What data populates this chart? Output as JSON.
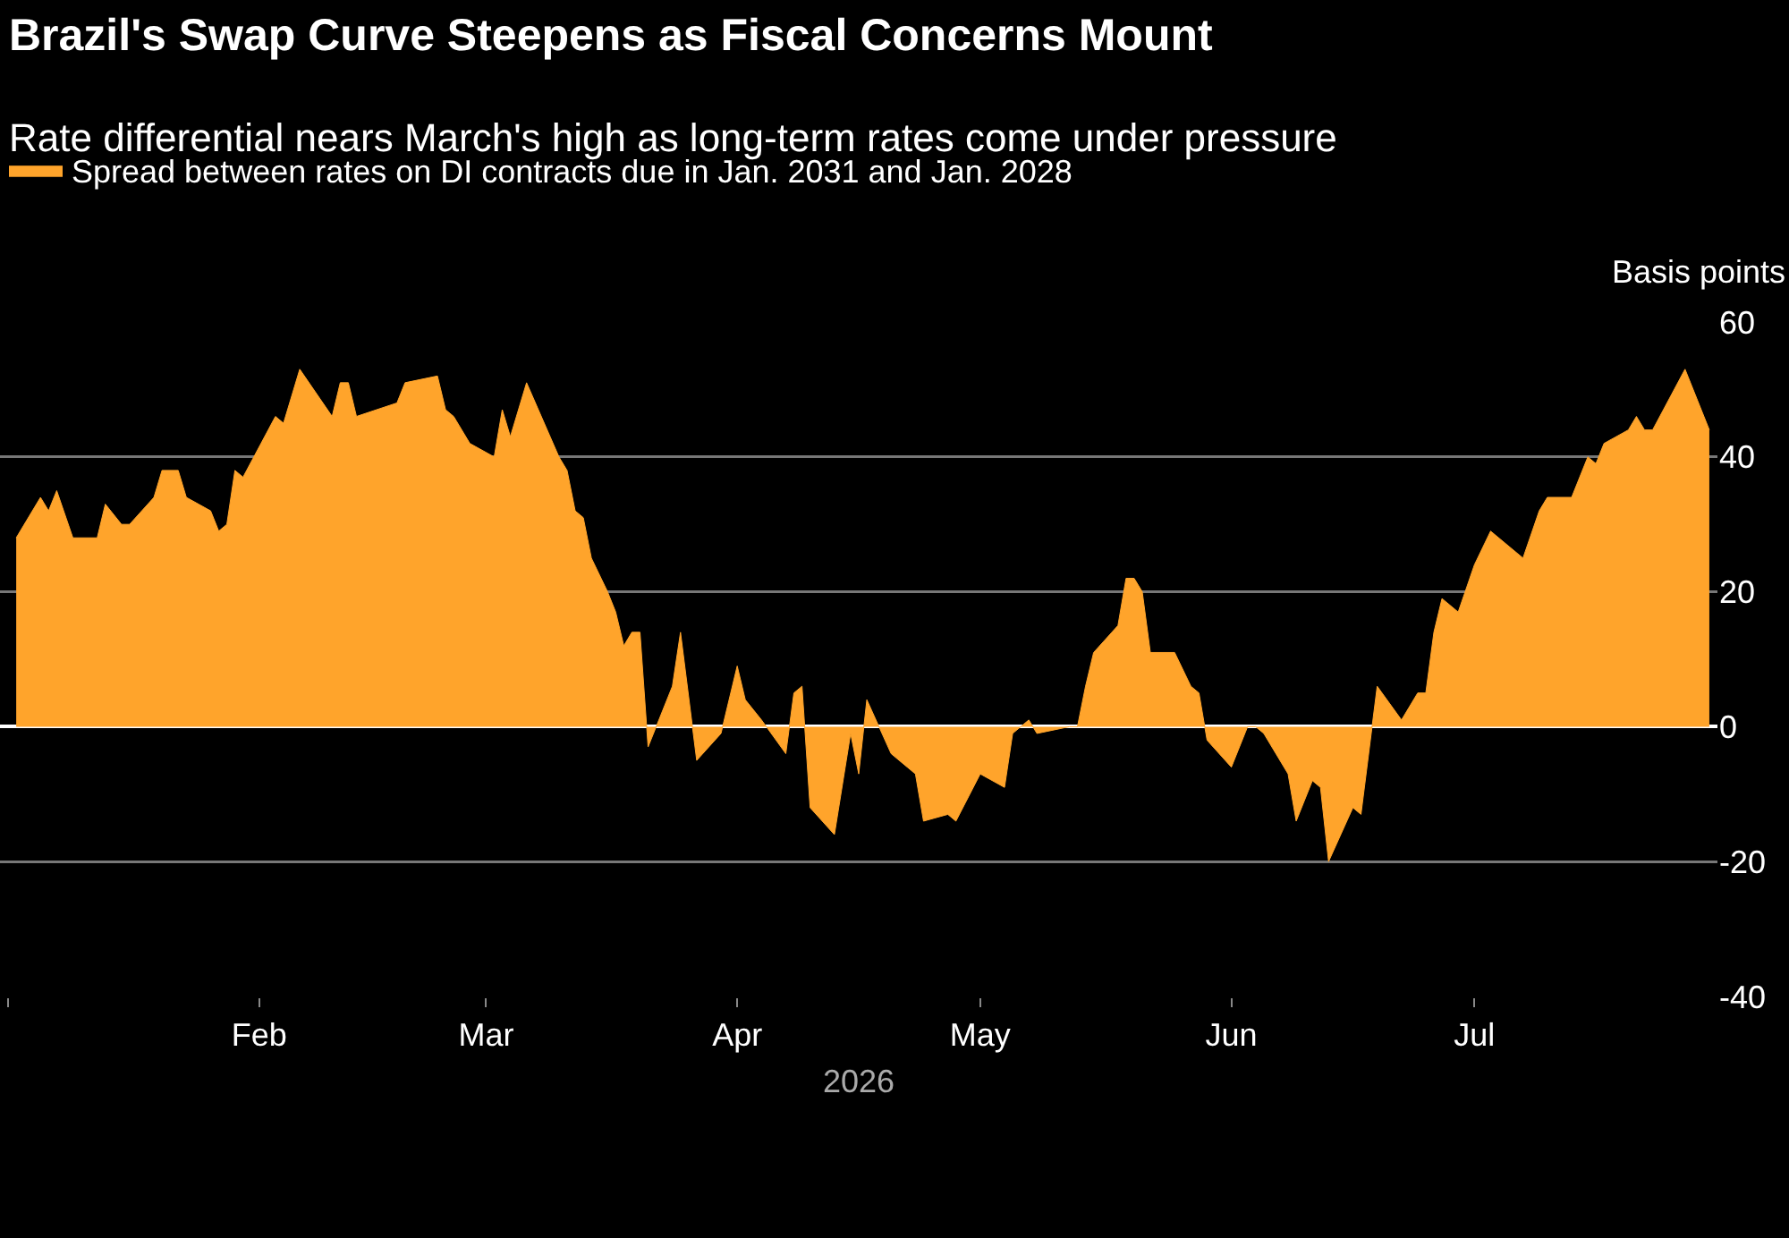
{
  "chart_data": {
    "type": "area",
    "title": "Brazil's Swap Curve Steepens as Fiscal Concerns Mount",
    "subtitle": "Rate differential nears March's high as long-term rates come under pressure",
    "ylabel": "Basis points",
    "xlabel": "2026",
    "x": [
      "2026-01-02",
      "2026-01-05",
      "2026-01-06",
      "2026-01-07",
      "2026-01-09",
      "2026-01-12",
      "2026-01-13",
      "2026-01-15",
      "2026-01-16",
      "2026-01-19",
      "2026-01-20",
      "2026-01-22",
      "2026-01-23",
      "2026-01-26",
      "2026-01-27",
      "2026-01-28",
      "2026-01-29",
      "2026-01-30",
      "2026-02-03",
      "2026-02-04",
      "2026-02-06",
      "2026-02-10",
      "2026-02-11",
      "2026-02-12",
      "2026-02-13",
      "2026-02-18",
      "2026-02-19",
      "2026-02-23",
      "2026-02-24",
      "2026-02-25",
      "2026-02-27",
      "2026-03-02",
      "2026-03-03",
      "2026-03-04",
      "2026-03-06",
      "2026-03-10",
      "2026-03-11",
      "2026-03-12",
      "2026-03-13",
      "2026-03-14",
      "2026-03-16",
      "2026-03-17",
      "2026-03-18",
      "2026-03-19",
      "2026-03-20",
      "2026-03-21",
      "2026-03-24",
      "2026-03-25",
      "2026-03-27",
      "2026-03-30",
      "2026-04-01",
      "2026-04-02",
      "2026-04-04",
      "2026-04-07",
      "2026-04-08",
      "2026-04-09",
      "2026-04-10",
      "2026-04-13",
      "2026-04-15",
      "2026-04-16",
      "2026-04-17",
      "2026-04-20",
      "2026-04-22",
      "2026-04-23",
      "2026-04-24",
      "2026-04-27",
      "2026-04-28",
      "2026-05-01",
      "2026-05-04",
      "2026-05-05",
      "2026-05-07",
      "2026-05-08",
      "2026-05-12",
      "2026-05-13",
      "2026-05-14",
      "2026-05-15",
      "2026-05-18",
      "2026-05-19",
      "2026-05-20",
      "2026-05-21",
      "2026-05-22",
      "2026-05-25",
      "2026-05-27",
      "2026-05-28",
      "2026-05-29",
      "2026-06-01",
      "2026-06-03",
      "2026-06-04",
      "2026-06-05",
      "2026-06-08",
      "2026-06-09",
      "2026-06-11",
      "2026-06-12",
      "2026-06-13",
      "2026-06-16",
      "2026-06-17",
      "2026-06-19",
      "2026-06-22",
      "2026-06-24",
      "2026-06-25",
      "2026-06-26",
      "2026-06-27",
      "2026-06-29",
      "2026-07-01",
      "2026-07-03",
      "2026-07-07",
      "2026-07-09",
      "2026-07-10",
      "2026-07-13",
      "2026-07-15",
      "2026-07-16",
      "2026-07-17",
      "2026-07-20",
      "2026-07-21",
      "2026-07-22",
      "2026-07-23",
      "2026-07-27",
      "2026-07-29",
      "2026-07-30"
    ],
    "series": [
      {
        "name": "Spread between rates on DI contracts due in Jan. 2031 and Jan. 2028",
        "color": "#ffa42b",
        "values": [
          28,
          34,
          32,
          35,
          28,
          28,
          33,
          30,
          30,
          34,
          38,
          38,
          34,
          32,
          29,
          30,
          38,
          37,
          46,
          45,
          53,
          46,
          51,
          51,
          46,
          48,
          51,
          52,
          47,
          46,
          42,
          40,
          47,
          43,
          51,
          40,
          38,
          32,
          31,
          25,
          20,
          17,
          12,
          14,
          14,
          -3,
          6,
          14,
          -5,
          -1,
          9,
          4,
          1,
          -4,
          5,
          6,
          -12,
          -16,
          -1,
          -7,
          4,
          -4,
          -6,
          -7,
          -14,
          -13,
          -14,
          -7,
          -9,
          -1,
          1,
          -1,
          0,
          0,
          6,
          11,
          15,
          22,
          22,
          20,
          11,
          11,
          6,
          5,
          -2,
          -6,
          0,
          0,
          -1,
          -7,
          -14,
          -8,
          -9,
          -20,
          -12,
          -13,
          6,
          1,
          5,
          5,
          14,
          19,
          17,
          24,
          29,
          25,
          32,
          34,
          34,
          40,
          39,
          42,
          44,
          46,
          44,
          44,
          53,
          47,
          44
        ]
      }
    ],
    "xlim": [
      "2025-12-31",
      "2026-07-31"
    ],
    "xticks": [
      {
        "value": "2026-01-01",
        "label": null
      },
      {
        "value": "2026-02-01",
        "label": "Feb"
      },
      {
        "value": "2026-03-01",
        "label": "Mar"
      },
      {
        "value": "2026-04-01",
        "label": "Apr"
      },
      {
        "value": "2026-05-01",
        "label": "May"
      },
      {
        "value": "2026-06-01",
        "label": "Jun"
      },
      {
        "value": "2026-07-01",
        "label": "Jul"
      }
    ],
    "ylim": [
      -40,
      60
    ],
    "yticks": [
      -40,
      -20,
      0,
      20,
      40,
      60
    ],
    "grid": "y",
    "legend": "top left"
  }
}
